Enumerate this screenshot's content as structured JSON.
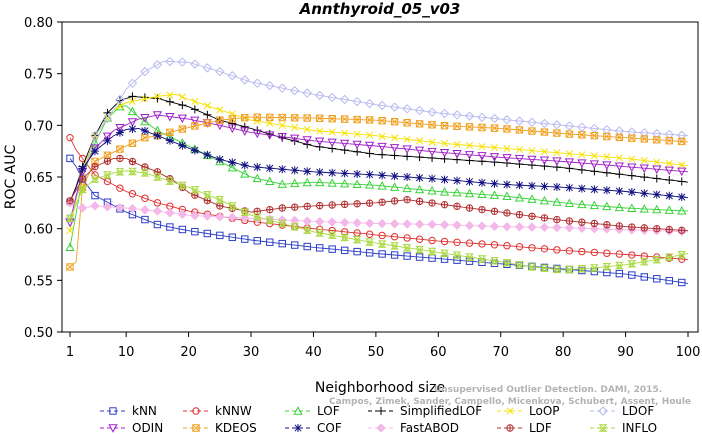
{
  "chart_data": {
    "type": "line",
    "title": "Annthyroid_05_v03",
    "xlabel": "Neighborhood size",
    "ylabel": "ROC AUC",
    "xlim": [
      1,
      100
    ],
    "ylim": [
      0.5,
      0.8
    ],
    "xticks": [
      1,
      10,
      20,
      30,
      40,
      50,
      60,
      70,
      80,
      90,
      100
    ],
    "yticks": [
      0.5,
      0.55,
      0.6,
      0.65,
      0.7,
      0.75,
      0.8
    ],
    "ytick_labels": [
      "0.50",
      "0.55",
      "0.60",
      "0.65",
      "0.70",
      "0.75",
      "0.80"
    ],
    "grid": false,
    "legend_position": "bottom",
    "watermark": [
      "Unsupervised Outlier Detection. DAMI, 2015.",
      "Campos, Zimek, Sander, Campello, Micenkova, Schubert, Assent, Houle"
    ],
    "series": [
      {
        "name": "kNN",
        "color": "#2c3ec7",
        "marker": "square",
        "points": [
          [
            1,
            0.668
          ],
          [
            2,
            0.66
          ],
          [
            3,
            0.648
          ],
          [
            5,
            0.632
          ],
          [
            10,
            0.616
          ],
          [
            15,
            0.604
          ],
          [
            20,
            0.598
          ],
          [
            30,
            0.589
          ],
          [
            40,
            0.582
          ],
          [
            50,
            0.576
          ],
          [
            60,
            0.571
          ],
          [
            70,
            0.566
          ],
          [
            80,
            0.561
          ],
          [
            90,
            0.556
          ],
          [
            100,
            0.547
          ]
        ]
      },
      {
        "name": "kNNW",
        "color": "#e03030",
        "marker": "circle",
        "points": [
          [
            1,
            0.688
          ],
          [
            2,
            0.676
          ],
          [
            3,
            0.668
          ],
          [
            5,
            0.652
          ],
          [
            10,
            0.636
          ],
          [
            15,
            0.625
          ],
          [
            20,
            0.617
          ],
          [
            30,
            0.607
          ],
          [
            40,
            0.6
          ],
          [
            50,
            0.594
          ],
          [
            60,
            0.588
          ],
          [
            70,
            0.584
          ],
          [
            80,
            0.579
          ],
          [
            90,
            0.575
          ],
          [
            100,
            0.57
          ]
        ]
      },
      {
        "name": "LOF",
        "color": "#3ad23a",
        "marker": "triangle-up",
        "points": [
          [
            1,
            0.582
          ],
          [
            2,
            0.615
          ],
          [
            3,
            0.65
          ],
          [
            5,
            0.683
          ],
          [
            7,
            0.707
          ],
          [
            9,
            0.718
          ],
          [
            10,
            0.719
          ],
          [
            12,
            0.708
          ],
          [
            15,
            0.695
          ],
          [
            20,
            0.68
          ],
          [
            25,
            0.665
          ],
          [
            30,
            0.65
          ],
          [
            35,
            0.643
          ],
          [
            40,
            0.645
          ],
          [
            50,
            0.642
          ],
          [
            60,
            0.636
          ],
          [
            70,
            0.632
          ],
          [
            80,
            0.625
          ],
          [
            90,
            0.62
          ],
          [
            100,
            0.617
          ]
        ]
      },
      {
        "name": "SimplifiedLOF",
        "color": "#000000",
        "marker": "plus",
        "points": [
          [
            1,
            0.626
          ],
          [
            2,
            0.641
          ],
          [
            3,
            0.66
          ],
          [
            5,
            0.69
          ],
          [
            7,
            0.712
          ],
          [
            9,
            0.724
          ],
          [
            11,
            0.728
          ],
          [
            15,
            0.726
          ],
          [
            20,
            0.718
          ],
          [
            25,
            0.705
          ],
          [
            30,
            0.697
          ],
          [
            35,
            0.688
          ],
          [
            40,
            0.68
          ],
          [
            50,
            0.672
          ],
          [
            60,
            0.668
          ],
          [
            70,
            0.664
          ],
          [
            80,
            0.659
          ],
          [
            90,
            0.652
          ],
          [
            100,
            0.645
          ]
        ]
      },
      {
        "name": "LoOP",
        "color": "#f5e100",
        "marker": "x",
        "points": [
          [
            1,
            0.598
          ],
          [
            2,
            0.628
          ],
          [
            3,
            0.655
          ],
          [
            5,
            0.69
          ],
          [
            8,
            0.715
          ],
          [
            10,
            0.722
          ],
          [
            15,
            0.728
          ],
          [
            18,
            0.73
          ],
          [
            20,
            0.725
          ],
          [
            25,
            0.715
          ],
          [
            30,
            0.705
          ],
          [
            40,
            0.695
          ],
          [
            50,
            0.69
          ],
          [
            60,
            0.683
          ],
          [
            70,
            0.678
          ],
          [
            80,
            0.673
          ],
          [
            90,
            0.668
          ],
          [
            100,
            0.661
          ]
        ]
      },
      {
        "name": "LDOF",
        "color": "#b9b9f0",
        "marker": "diamond",
        "points": [
          [
            1,
            0.61
          ],
          [
            3,
            0.65
          ],
          [
            5,
            0.69
          ],
          [
            8,
            0.715
          ],
          [
            10,
            0.735
          ],
          [
            13,
            0.752
          ],
          [
            16,
            0.762
          ],
          [
            20,
            0.761
          ],
          [
            25,
            0.752
          ],
          [
            30,
            0.742
          ],
          [
            40,
            0.73
          ],
          [
            50,
            0.72
          ],
          [
            60,
            0.712
          ],
          [
            70,
            0.706
          ],
          [
            80,
            0.7
          ],
          [
            90,
            0.694
          ],
          [
            100,
            0.69
          ]
        ]
      },
      {
        "name": "ODIN",
        "color": "#a020c8",
        "marker": "triangle-down",
        "points": [
          [
            1,
            0.606
          ],
          [
            2,
            0.632
          ],
          [
            3,
            0.655
          ],
          [
            5,
            0.678
          ],
          [
            8,
            0.695
          ],
          [
            12,
            0.706
          ],
          [
            15,
            0.71
          ],
          [
            20,
            0.706
          ],
          [
            25,
            0.7
          ],
          [
            30,
            0.693
          ],
          [
            40,
            0.685
          ],
          [
            50,
            0.68
          ],
          [
            60,
            0.674
          ],
          [
            70,
            0.669
          ],
          [
            80,
            0.665
          ],
          [
            90,
            0.66
          ],
          [
            100,
            0.655
          ]
        ]
      },
      {
        "name": "KDEOS",
        "color": "#f0a020",
        "marker": "square-x",
        "points": [
          [
            1,
            0.563
          ],
          [
            2,
            0.568
          ],
          [
            3,
            0.64
          ],
          [
            5,
            0.665
          ],
          [
            10,
            0.68
          ],
          [
            13,
            0.688
          ],
          [
            15,
            0.69
          ],
          [
            20,
            0.698
          ],
          [
            25,
            0.705
          ],
          [
            30,
            0.708
          ],
          [
            40,
            0.707
          ],
          [
            50,
            0.705
          ],
          [
            60,
            0.7
          ],
          [
            70,
            0.697
          ],
          [
            80,
            0.692
          ],
          [
            90,
            0.688
          ],
          [
            100,
            0.684
          ]
        ]
      },
      {
        "name": "COF",
        "color": "#101080",
        "marker": "asterisk",
        "points": [
          [
            1,
            0.626
          ],
          [
            2,
            0.64
          ],
          [
            3,
            0.658
          ],
          [
            5,
            0.675
          ],
          [
            8,
            0.69
          ],
          [
            10,
            0.696
          ],
          [
            12,
            0.697
          ],
          [
            15,
            0.69
          ],
          [
            20,
            0.678
          ],
          [
            25,
            0.667
          ],
          [
            30,
            0.66
          ],
          [
            40,
            0.655
          ],
          [
            50,
            0.652
          ],
          [
            60,
            0.648
          ],
          [
            70,
            0.643
          ],
          [
            80,
            0.64
          ],
          [
            90,
            0.636
          ],
          [
            100,
            0.63
          ]
        ]
      },
      {
        "name": "FastABOD",
        "color": "#f4b8e8",
        "marker": "diamond-filled",
        "points": [
          [
            1,
            0.625
          ],
          [
            3,
            0.62
          ],
          [
            5,
            0.622
          ],
          [
            10,
            0.62
          ],
          [
            15,
            0.617
          ],
          [
            20,
            0.613
          ],
          [
            30,
            0.61
          ],
          [
            40,
            0.607
          ],
          [
            50,
            0.605
          ],
          [
            60,
            0.604
          ],
          [
            70,
            0.602
          ],
          [
            80,
            0.601
          ],
          [
            90,
            0.599
          ],
          [
            100,
            0.597
          ]
        ]
      },
      {
        "name": "LDF",
        "color": "#b03030",
        "marker": "circle-plus",
        "points": [
          [
            1,
            0.627
          ],
          [
            3,
            0.648
          ],
          [
            5,
            0.66
          ],
          [
            8,
            0.668
          ],
          [
            10,
            0.668
          ],
          [
            12,
            0.662
          ],
          [
            15,
            0.655
          ],
          [
            18,
            0.645
          ],
          [
            20,
            0.635
          ],
          [
            25,
            0.622
          ],
          [
            30,
            0.616
          ],
          [
            35,
            0.62
          ],
          [
            40,
            0.622
          ],
          [
            50,
            0.625
          ],
          [
            55,
            0.628
          ],
          [
            60,
            0.624
          ],
          [
            70,
            0.616
          ],
          [
            80,
            0.608
          ],
          [
            90,
            0.602
          ],
          [
            100,
            0.598
          ]
        ]
      },
      {
        "name": "INFLO",
        "color": "#a8d840",
        "marker": "hourglass",
        "points": [
          [
            1,
            0.61
          ],
          [
            3,
            0.638
          ],
          [
            5,
            0.648
          ],
          [
            8,
            0.654
          ],
          [
            10,
            0.656
          ],
          [
            13,
            0.654
          ],
          [
            15,
            0.65
          ],
          [
            20,
            0.64
          ],
          [
            25,
            0.628
          ],
          [
            30,
            0.613
          ],
          [
            40,
            0.597
          ],
          [
            50,
            0.586
          ],
          [
            60,
            0.577
          ],
          [
            70,
            0.568
          ],
          [
            75,
            0.563
          ],
          [
            80,
            0.56
          ],
          [
            85,
            0.562
          ],
          [
            90,
            0.565
          ],
          [
            95,
            0.57
          ],
          [
            100,
            0.576
          ]
        ]
      }
    ]
  }
}
